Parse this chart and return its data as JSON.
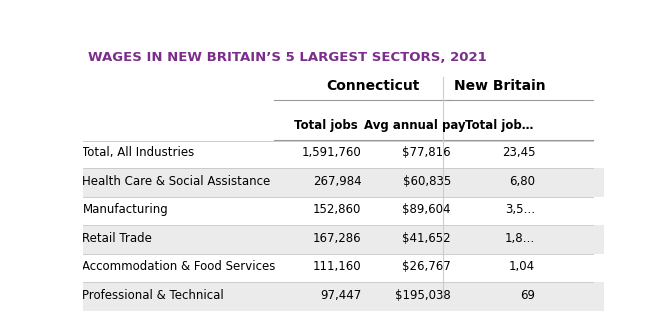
{
  "title": "WAGES IN NEW BRITAIN’S 5 LARGEST SECTORS, 2021",
  "title_color": "#7b2d8b",
  "background_color": "#ffffff",
  "col_group1": "Connecticut",
  "col_group2": "New Britain",
  "col_headers_ct": [
    "Total jobs",
    "Avg annual pay"
  ],
  "col_headers_nb": [
    "Total job…"
  ],
  "row_labels": [
    "Total, All Industries",
    "Health Care & Social Assistance",
    "Manufacturing",
    "Retail Trade",
    "Accommodation & Food Services",
    "Professional & Technical"
  ],
  "ct_total_jobs": [
    "1,591,760",
    "267,984",
    "152,860",
    "167,286",
    "111,160",
    "97,447"
  ],
  "ct_avg_pay": [
    "$77,816",
    "$60,835",
    "$89,604",
    "$41,652",
    "$26,767",
    "$195,038"
  ],
  "nb_total_jobs": [
    "23,45",
    "6,80",
    "3,5…",
    "1,8…",
    "1,04",
    "69"
  ],
  "row_bg_odd": "#ffffff",
  "row_bg_even": "#ebebeb",
  "line_color": "#cccccc",
  "divider_color": "#aaaaaa",
  "title_fontsize": 9.5,
  "header_fontsize": 8.5,
  "data_fontsize": 8.5,
  "label_fontsize": 8.5
}
